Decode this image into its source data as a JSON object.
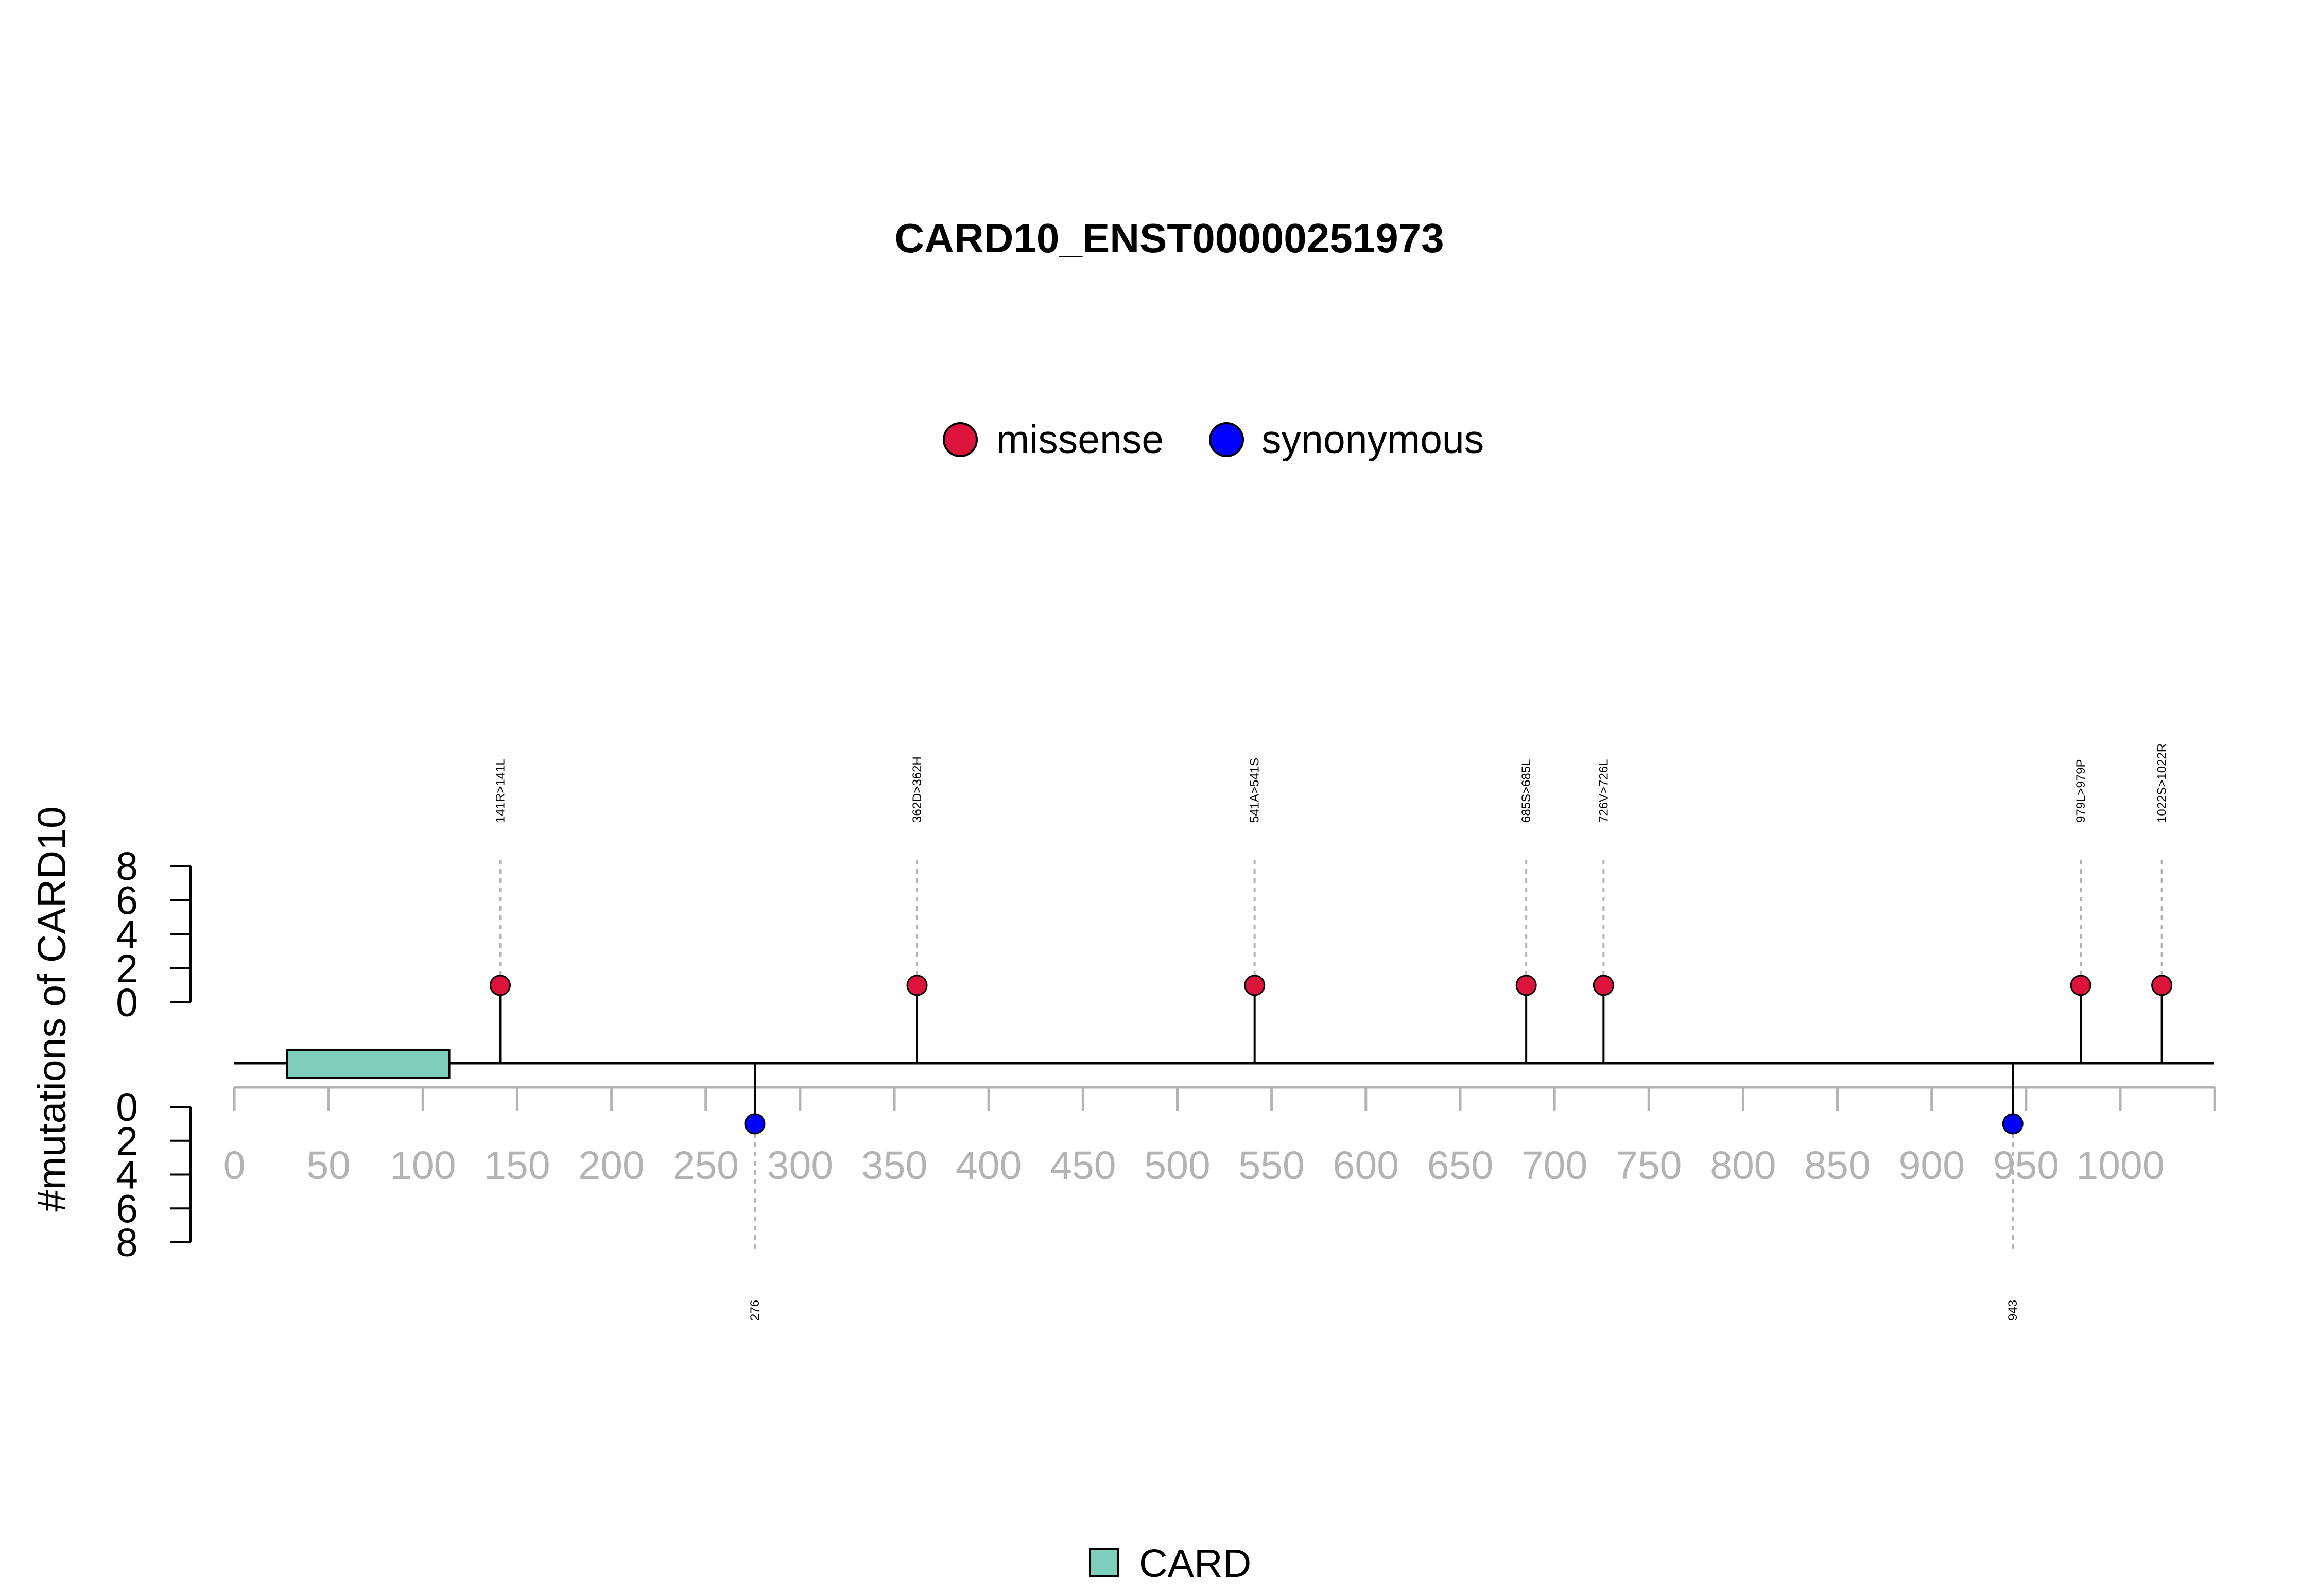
{
  "chart_data": {
    "type": "lollipop",
    "title": "CARD10_ENST00000251973",
    "ylabel": "#mutations of CARD10",
    "xlim": [
      0,
      1050
    ],
    "ylim": [
      0,
      8
    ],
    "x_ticks": [
      0,
      50,
      100,
      150,
      200,
      250,
      300,
      350,
      400,
      450,
      500,
      550,
      600,
      650,
      700,
      750,
      800,
      850,
      900,
      950,
      1000
    ],
    "y_ticks": [
      0,
      2,
      4,
      6,
      8
    ],
    "legend": [
      {
        "name": "missense",
        "color": "#dc143c"
      },
      {
        "name": "synonymous",
        "color": "#0000ff"
      }
    ],
    "series": [
      {
        "name": "missense",
        "color": "#dc143c",
        "side": "top",
        "points": [
          {
            "x": 141,
            "y": 1,
            "label": "141R>141L"
          },
          {
            "x": 362,
            "y": 1,
            "label": "362D>362H"
          },
          {
            "x": 541,
            "y": 1,
            "label": "541A>541S"
          },
          {
            "x": 685,
            "y": 1,
            "label": "685S>685L"
          },
          {
            "x": 726,
            "y": 1,
            "label": "726V>726L"
          },
          {
            "x": 979,
            "y": 1,
            "label": "979L>979P"
          },
          {
            "x": 1022,
            "y": 1,
            "label": "1022S>1022R"
          }
        ]
      },
      {
        "name": "synonymous",
        "color": "#0000ff",
        "side": "bottom",
        "points": [
          {
            "x": 276,
            "y": 1,
            "label": "276"
          },
          {
            "x": 943,
            "y": 1,
            "label": "943"
          }
        ]
      }
    ],
    "domains": [
      {
        "name": "CARD",
        "start": 28,
        "end": 114,
        "color": "#7fcdbb"
      }
    ],
    "domain_legend": [
      {
        "name": "CARD",
        "color": "#7fcdbb"
      }
    ]
  }
}
